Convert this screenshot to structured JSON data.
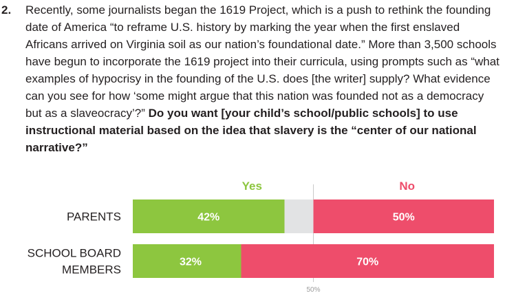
{
  "question": {
    "number": "2.",
    "text": "Recently, some journalists began the 1619 Project, which is a push to rethink the founding date of America “to reframe U.S. history by marking the year when the first enslaved Africans arrived on Virginia soil as our nation’s foundational date.” More than 3,500 schools have begun to incorporate the 1619 project into their curricula, using prompts such as “what examples of hypocrisy in the founding of the U.S. does [the writer] supply? What evidence can you see for how ‘some might argue that this nation was founded not as a democracy but as a slaveocracy’?”",
    "bold_text": "Do you want [your child’s school/public schools] to use instructional material based on the idea that slavery is the “center of our national narrative?”"
  },
  "colors": {
    "yes": "#8dc63f",
    "no": "#ee4d6b",
    "neutral": "#e2e3e4",
    "text": "#231f20",
    "midline": "#c9c9c9",
    "marker_text": "#9b9b9b"
  },
  "chart_data": {
    "type": "bar",
    "orientation": "horizontal",
    "stacked": "diverging",
    "categories": [
      "PARENTS",
      "SCHOOL BOARD\nMEMBERS"
    ],
    "series": [
      {
        "name": "Yes",
        "values": [
          42,
          32
        ]
      },
      {
        "name": "No",
        "values": [
          50,
          70
        ]
      }
    ],
    "value_labels": {
      "Yes": [
        "42%",
        "32%"
      ],
      "No": [
        "50%",
        "70%"
      ]
    },
    "xlim": [
      0,
      100
    ],
    "reference_line": {
      "value": 50,
      "label": "50%"
    },
    "legend": "top"
  }
}
